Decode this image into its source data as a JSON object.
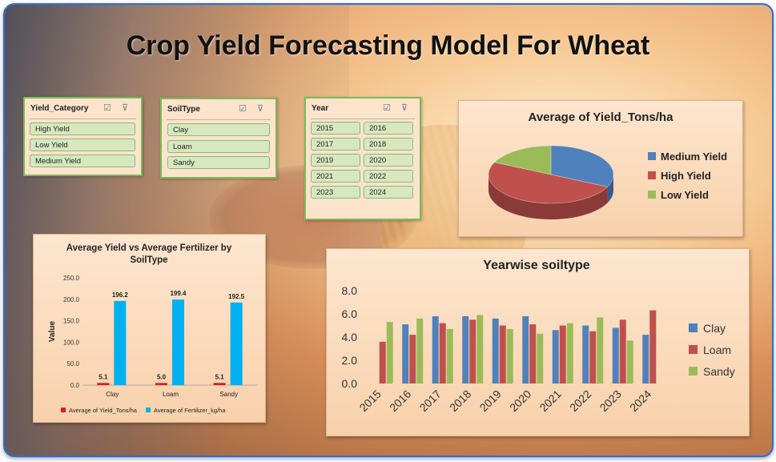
{
  "title": "Crop Yield Forecasting Model For Wheat",
  "slicers": {
    "yield_category": {
      "title": "Yield_Category",
      "items": [
        "High Yield",
        "Low Yield",
        "Medium Yield"
      ]
    },
    "soil_type": {
      "title": "SoilType",
      "items": [
        "Clay",
        "Loam",
        "Sandy"
      ]
    },
    "year": {
      "title": "Year",
      "items": [
        "2015",
        "2016",
        "2017",
        "2018",
        "2019",
        "2020",
        "2021",
        "2022",
        "2023",
        "2024"
      ]
    }
  },
  "chart_data": [
    {
      "type": "pie",
      "title": "Average of Yield_Tons/ha",
      "categories": [
        "Medium Yield",
        "High Yield",
        "Low Yield"
      ],
      "values": [
        32,
        50,
        18
      ],
      "colors": [
        "#4f81bd",
        "#c0504d",
        "#9bbb59"
      ],
      "legend": "right"
    },
    {
      "type": "bar",
      "title": "Average Yield vs Average  Fertilizer by SoilType",
      "categories": [
        "Clay",
        "Loam",
        "Sandy"
      ],
      "series": [
        {
          "name": "Average of Yield_Tons/ha",
          "values": [
            5.1,
            5.0,
            5.1
          ],
          "color": "#e31a1c"
        },
        {
          "name": "Average of Fertilizer_kg/ha",
          "values": [
            196.2,
            199.4,
            192.5
          ],
          "color": "#00b0f0"
        }
      ],
      "ylabel": "Value",
      "ylim": [
        0,
        250
      ],
      "yticks": [
        "0.0",
        "50.0",
        "100.0",
        "150.0",
        "200.0",
        "250.0"
      ],
      "data_labels": [
        "5.1",
        "196.2",
        "5.0",
        "199.4",
        "5.1",
        "192.5"
      ],
      "legend": "bottom"
    },
    {
      "type": "bar",
      "title": "Yearwise soiltype",
      "categories": [
        "2015",
        "2016",
        "2017",
        "2018",
        "2019",
        "2020",
        "2021",
        "2022",
        "2023",
        "2024"
      ],
      "series": [
        {
          "name": "Clay",
          "values": [
            0,
            5.1,
            5.8,
            5.8,
            5.6,
            5.8,
            4.6,
            5.0,
            4.8,
            4.2
          ],
          "color": "#4f81bd"
        },
        {
          "name": "Loam",
          "values": [
            3.6,
            4.2,
            5.2,
            5.5,
            5.0,
            5.1,
            5.0,
            4.5,
            5.5,
            6.3
          ],
          "color": "#c0504d"
        },
        {
          "name": "Sandy",
          "values": [
            5.3,
            5.6,
            4.7,
            5.9,
            4.7,
            4.3,
            5.2,
            5.7,
            3.7,
            0
          ],
          "color": "#9bbb59"
        }
      ],
      "ylim": [
        0,
        8
      ],
      "yticks": [
        "0.0",
        "2.0",
        "4.0",
        "6.0",
        "8.0"
      ],
      "legend": "right"
    }
  ]
}
